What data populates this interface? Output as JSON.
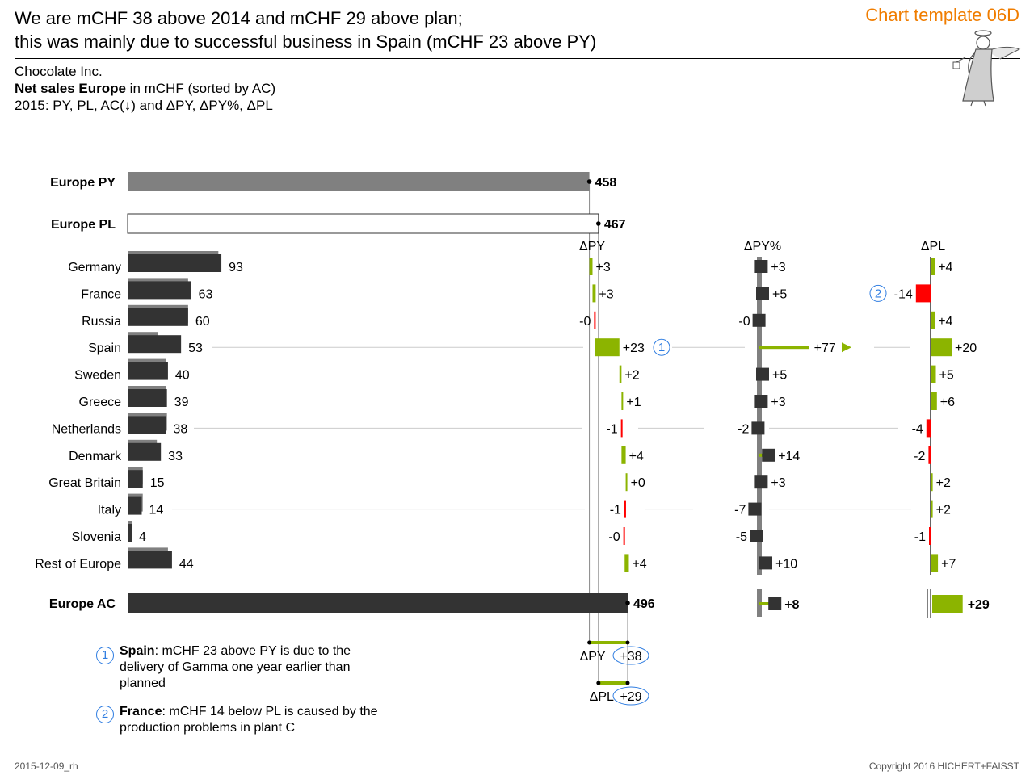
{
  "header": {
    "title_line1": "We are mCHF 38 above 2014 and mCHF 29 above plan;",
    "title_line2": "this was mainly due to successful business in Spain (mCHF 23 above PY)",
    "template_label": "Chart template 06D"
  },
  "subtitle": {
    "line1": "Chocolate Inc.",
    "line2_bold": "Net sales Europe",
    "line2_rest": " in mCHF (sorted by AC)",
    "line3": "2015: PY, PL, AC(↓) and ΔPY, ΔPY%, ΔPL"
  },
  "chart_data": {
    "type": "bar",
    "totals": [
      {
        "label": "Europe PY",
        "value": 458,
        "value_label": "458"
      },
      {
        "label": "Europe PL",
        "value": 467,
        "value_label": "467"
      },
      {
        "label": "Europe AC",
        "value": 496,
        "value_label": "496"
      }
    ],
    "column_headers": {
      "dpy": "ΔPY",
      "dpy_pct": "ΔPY%",
      "dpl": "ΔPL"
    },
    "categories": [
      "Germany",
      "France",
      "Russia",
      "Spain",
      "Sweden",
      "Greece",
      "Netherlands",
      "Denmark",
      "Great Britain",
      "Italy",
      "Slovenia",
      "Rest of Europe"
    ],
    "series": [
      {
        "name": "AC",
        "values": [
          93,
          63,
          60,
          53,
          40,
          39,
          38,
          33,
          15,
          14,
          4,
          44
        ]
      },
      {
        "name": "PY",
        "values": [
          90,
          60,
          60,
          30,
          38,
          38,
          39,
          29,
          15,
          15,
          4,
          40
        ]
      },
      {
        "name": "ΔPY",
        "values": [
          3,
          3,
          -0.4,
          23,
          2,
          1,
          -1,
          4,
          0.3,
          -1,
          -0.3,
          4
        ],
        "labels": [
          "+3",
          "+3",
          "-0",
          "+23",
          "+2",
          "+1",
          "-1",
          "+4",
          "+0",
          "-1",
          "-0",
          "+4"
        ]
      },
      {
        "name": "ΔPY%",
        "values": [
          3,
          5,
          -0.5,
          77,
          5,
          3,
          -2,
          14,
          3,
          -7,
          -5,
          10
        ],
        "labels": [
          "+3",
          "+5",
          "-0",
          "+77",
          "+5",
          "+3",
          "-2",
          "+14",
          "+3",
          "-7",
          "-5",
          "+10"
        ]
      },
      {
        "name": "ΔPL",
        "values": [
          4,
          -14,
          4,
          20,
          5,
          6,
          -4,
          -2,
          2,
          2,
          -1,
          7
        ],
        "labels": [
          "+4",
          "-14",
          "+4",
          "+20",
          "+5",
          "+6",
          "-4",
          "-2",
          "+2",
          "+2",
          "-1",
          "+7"
        ]
      }
    ],
    "total_dpy_pct": {
      "value": 8,
      "label": "+8"
    },
    "total_dpl": {
      "value": 29,
      "label": "+29"
    },
    "summary": [
      {
        "label": "ΔPY",
        "value": 38,
        "value_label": "+38"
      },
      {
        "label": "ΔPL",
        "value": 29,
        "value_label": "+29"
      }
    ],
    "markers": [
      {
        "category": "Spain",
        "column": "ΔPY",
        "badge": "1"
      },
      {
        "category": "France",
        "column": "ΔPL",
        "badge": "2"
      }
    ],
    "colors": {
      "ac": "#333333",
      "py": "#808080",
      "positive": "#8cb400",
      "negative": "#ff0000",
      "axis": "#808080",
      "badge": "#2f7de1",
      "accent": "#f07d00"
    }
  },
  "notes": [
    {
      "badge": "1",
      "bold": "Spain",
      "text": ": mCHF 23 above PY is due to the delivery of Gamma one year earlier than planned"
    },
    {
      "badge": "2",
      "bold": "France",
      "text": ": mCHF 14 below PL is caused by the production problems in plant C"
    }
  ],
  "footer": {
    "date": "2015-12-09_rh",
    "copyright": "Copyright 2016 HICHERT+FAISST"
  }
}
